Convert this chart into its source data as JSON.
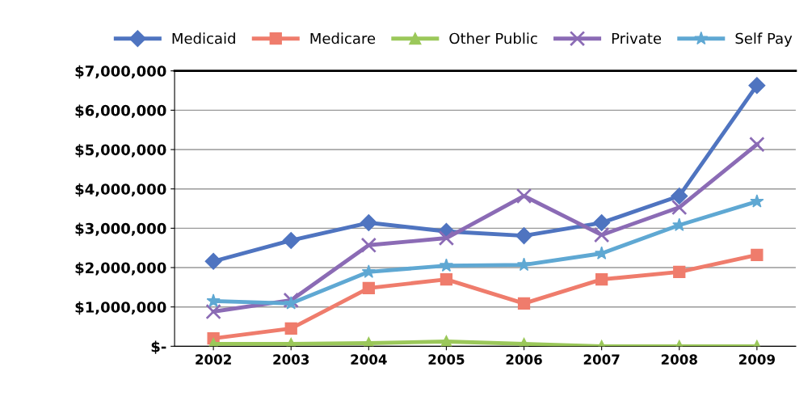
{
  "chart_data": {
    "type": "line",
    "categories": [
      "2002",
      "2003",
      "2004",
      "2005",
      "2006",
      "2007",
      "2008",
      "2009"
    ],
    "series": [
      {
        "name": "Medicaid",
        "color": "#4f74c0",
        "marker": "diamond",
        "values": [
          2160000,
          2690000,
          3140000,
          2920000,
          2810000,
          3140000,
          3820000,
          6630000
        ]
      },
      {
        "name": "Medicare",
        "color": "#ef7c6c",
        "marker": "square",
        "values": [
          200000,
          450000,
          1480000,
          1700000,
          1090000,
          1700000,
          1890000,
          2320000
        ]
      },
      {
        "name": "Other Public",
        "color": "#9bc85a",
        "marker": "triangle",
        "values": [
          60000,
          60000,
          80000,
          120000,
          60000,
          0,
          0,
          0
        ]
      },
      {
        "name": "Private",
        "color": "#8b6bb5",
        "marker": "cross",
        "values": [
          880000,
          1170000,
          2570000,
          2750000,
          3820000,
          2830000,
          3530000,
          5130000
        ]
      },
      {
        "name": "Self Pay",
        "color": "#5fa8d3",
        "marker": "star",
        "values": [
          1150000,
          1090000,
          1890000,
          2050000,
          2070000,
          2360000,
          3080000,
          3680000
        ]
      }
    ],
    "ylim": [
      0,
      7000000
    ],
    "yticks": [
      {
        "value": 0,
        "label": "$-"
      },
      {
        "value": 1000000,
        "label": "$1,000,000"
      },
      {
        "value": 2000000,
        "label": "$2,000,000"
      },
      {
        "value": 3000000,
        "label": "$3,000,000"
      },
      {
        "value": 4000000,
        "label": "$4,000,000"
      },
      {
        "value": 5000000,
        "label": "$5,000,000"
      },
      {
        "value": 6000000,
        "label": "$6,000,000"
      },
      {
        "value": 7000000,
        "label": "$7,000,000"
      }
    ],
    "grid": "y",
    "legend": "top",
    "line_style": "solid"
  }
}
